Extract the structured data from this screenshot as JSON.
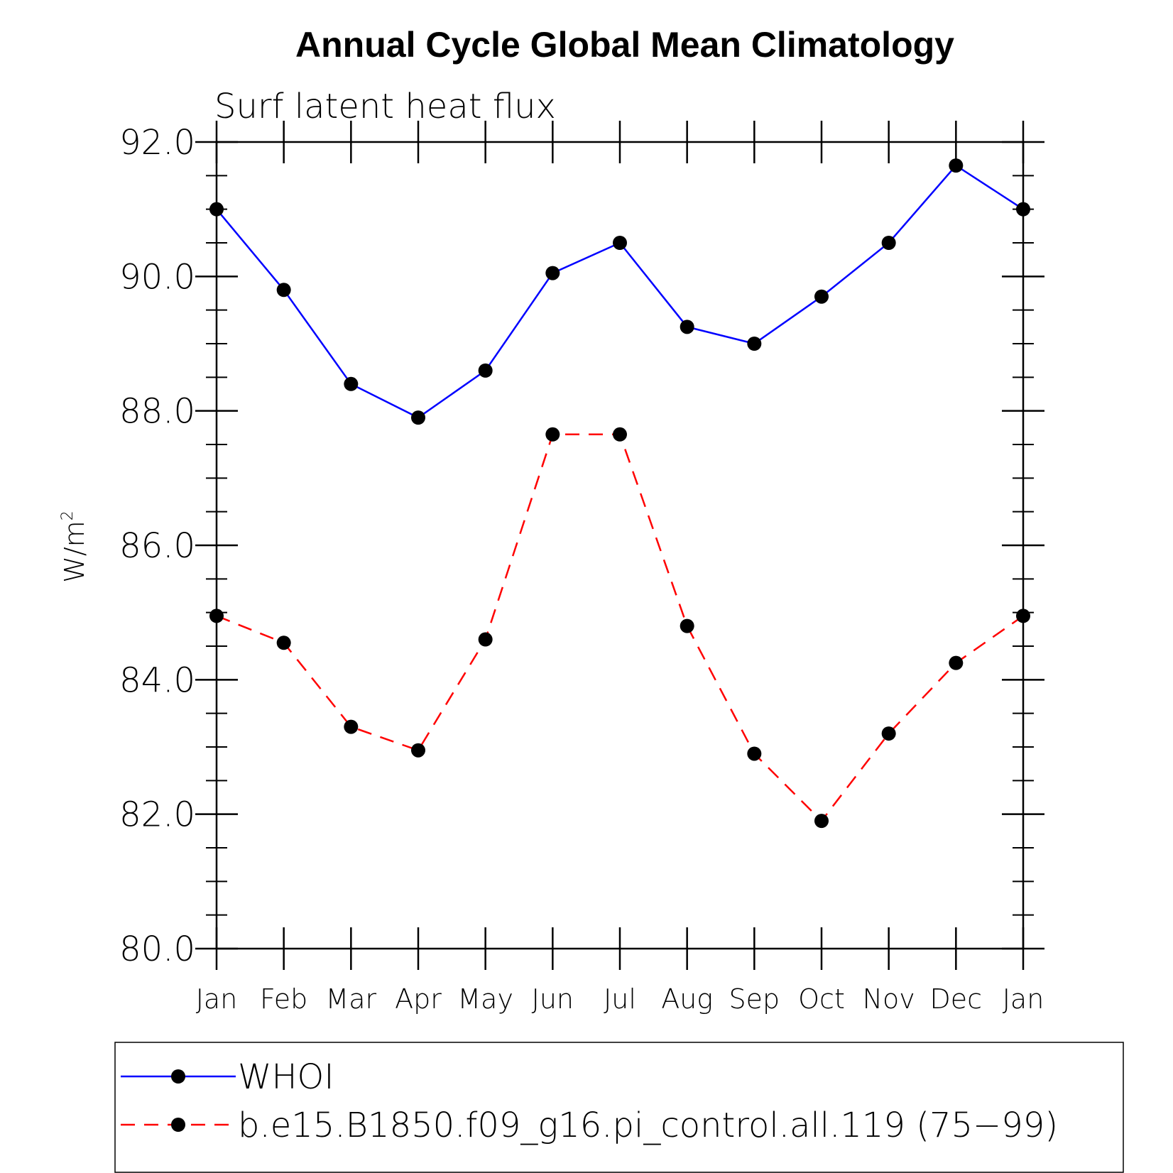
{
  "chart_data": {
    "type": "line",
    "title": "Annual Cycle Global Mean Climatology",
    "subtitle": "Surf latent heat flux",
    "ylabel_base": "W/m",
    "ylabel_sup": "2",
    "xlabel": "",
    "categories": [
      "Jan",
      "Feb",
      "Mar",
      "Apr",
      "May",
      "Jun",
      "Jul",
      "Aug",
      "Sep",
      "Oct",
      "Nov",
      "Dec",
      "Jan"
    ],
    "ylim": [
      80,
      92
    ],
    "yticks": [
      "80.0",
      "82.0",
      "84.0",
      "86.0",
      "88.0",
      "90.0",
      "92.0"
    ],
    "grid": false,
    "legend_position": "bottom",
    "series": [
      {
        "name": "WHOI",
        "color": "#0000ff",
        "dashed": false,
        "values": [
          91.0,
          89.8,
          88.4,
          87.9,
          88.6,
          90.05,
          90.5,
          89.25,
          89.0,
          89.7,
          90.5,
          91.65,
          91.0
        ]
      },
      {
        "name": "b.e15.B1850.f09_g16.pi_control.all.119 (75−99)",
        "color": "#ff0000",
        "dashed": true,
        "values": [
          84.95,
          84.55,
          83.3,
          82.95,
          84.6,
          87.65,
          87.65,
          84.8,
          82.9,
          81.9,
          83.2,
          84.25,
          84.95
        ]
      }
    ]
  }
}
